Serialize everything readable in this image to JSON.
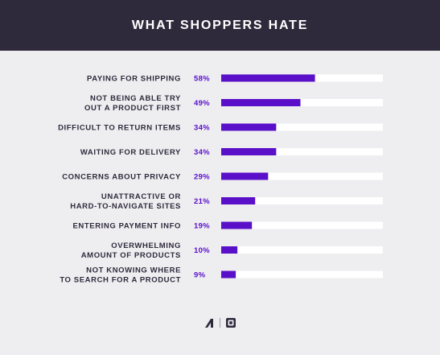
{
  "header": {
    "title": "WHAT SHOPPERS HATE"
  },
  "colors": {
    "header_bg": "#2f2a3b",
    "bar": "#5a0fc8",
    "track": "#ffffff",
    "value_text": "#5a0fc8",
    "label_text": "#2f2a3b"
  },
  "chart_data": {
    "type": "bar",
    "orientation": "horizontal",
    "title": "WHAT SHOPPERS HATE",
    "xlim": [
      0,
      100
    ],
    "grid": false,
    "categories": [
      [
        "PAYING FOR SHIPPING"
      ],
      [
        "NOT BEING ABLE TRY",
        "OUT A PRODUCT FIRST"
      ],
      [
        "DIFFICULT TO RETURN ITEMS"
      ],
      [
        "WAITING FOR DELIVERY"
      ],
      [
        "CONCERNS ABOUT PRIVACY"
      ],
      [
        "UNATTRACTIVE OR",
        "HARD-TO-NAVIGATE SITES"
      ],
      [
        "ENTERING PAYMENT INFO"
      ],
      [
        "OVERWHELMING",
        "AMOUNT OF PRODUCTS"
      ],
      [
        "NOT KNOWING WHERE",
        "TO SEARCH FOR A PRODUCT"
      ]
    ],
    "values": [
      58,
      49,
      34,
      34,
      29,
      21,
      19,
      10,
      9
    ],
    "value_labels": [
      "58%",
      "49%",
      "34%",
      "34%",
      "29%",
      "21%",
      "19%",
      "10%",
      "9%"
    ]
  },
  "footer": {
    "logo_left_icon": "shopify-like-logo-icon",
    "logo_right_icon": "square-logo-icon"
  }
}
